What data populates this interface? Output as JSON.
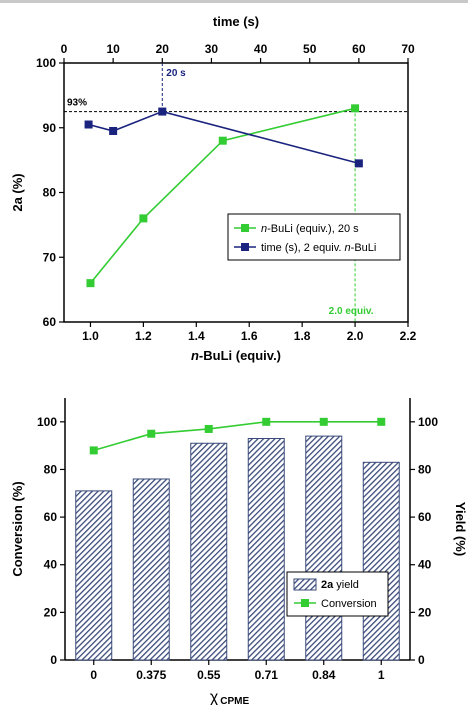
{
  "chart_data": [
    {
      "type": "line",
      "x_top": {
        "label": "time (s)",
        "range": [
          0,
          70
        ],
        "ticks": [
          0,
          10,
          20,
          30,
          40,
          50,
          60,
          70
        ]
      },
      "x_bottom": {
        "label_prefix": "n",
        "label_rest": "-BuLi (equiv.)",
        "range": [
          0.9,
          2.2
        ],
        "ticks": [
          "1.0",
          "1.2",
          "1.4",
          "1.6",
          "1.8",
          "2.0",
          "2.2"
        ]
      },
      "y": {
        "label": "2a (%)",
        "range": [
          60,
          100
        ],
        "ticks": [
          60,
          70,
          80,
          90,
          100
        ]
      },
      "series": [
        {
          "name_prefix": "",
          "name_italic": "n",
          "name_rest": "-BuLi (equiv.), 20 s",
          "axis": "bottom",
          "color": "#33cc33",
          "x": [
            1.0,
            1.2,
            1.5,
            2.0
          ],
          "y": [
            66,
            76,
            88,
            93
          ]
        },
        {
          "name_prefix": "time (s), 2 equiv. ",
          "name_italic": "n",
          "name_rest": "-BuLi",
          "axis": "top",
          "color": "#1a237e",
          "x": [
            5,
            10,
            20,
            60
          ],
          "y": [
            90.5,
            89.5,
            92.5,
            84.5
          ]
        }
      ],
      "annotations": {
        "hline_label": "93%",
        "hline_value": 92.5,
        "vline_top_label": "20 s",
        "vline_top_value": 20,
        "vline_bottom_label": "2.0 equiv.",
        "vline_bottom_value": 2.0
      },
      "legend_position": "right-middle"
    },
    {
      "type": "bar",
      "categories": [
        "0",
        "0.375",
        "0.55",
        "0.71",
        "0.84",
        "1"
      ],
      "xlabel": "χ",
      "xlabel_sub": "CPME",
      "ylabel_left": "Conversion (%)",
      "ylabel_right": "Yield (%)",
      "ylim": [
        0,
        110
      ],
      "yticks": [
        0,
        20,
        40,
        60,
        80,
        100
      ],
      "series": [
        {
          "name_bold": "2a",
          "name_rest": " yield",
          "type": "bar",
          "axis": "right",
          "color": "#3a4a7a",
          "values": [
            71,
            76,
            91,
            93,
            94,
            83
          ]
        },
        {
          "name_bold": "",
          "name_rest": "Conversion",
          "type": "line",
          "axis": "left",
          "color": "#33cc33",
          "values": [
            88,
            95,
            97,
            100,
            100,
            100
          ]
        }
      ],
      "legend_position": "right-middle"
    }
  ]
}
